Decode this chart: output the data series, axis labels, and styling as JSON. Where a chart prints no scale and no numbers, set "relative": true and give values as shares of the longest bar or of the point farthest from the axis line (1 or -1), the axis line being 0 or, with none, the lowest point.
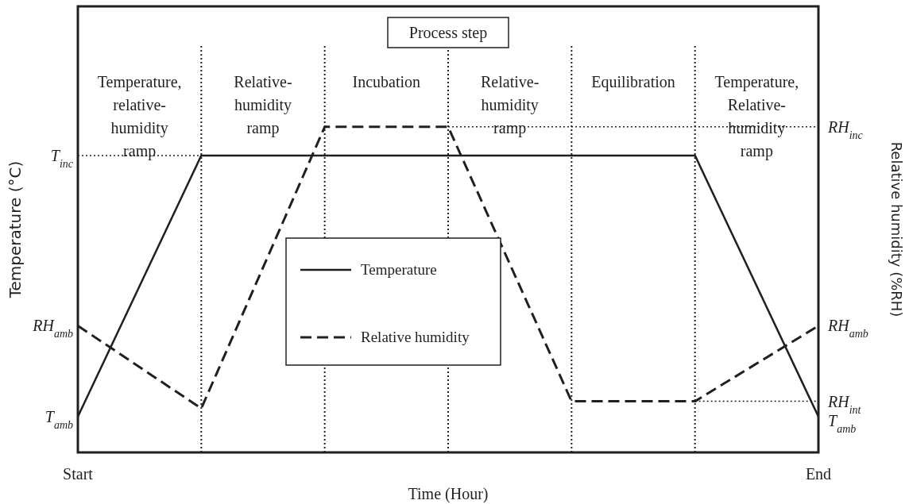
{
  "chart_data": {
    "type": "line",
    "relative": true,
    "xlabel": "Time (Hour)",
    "ylabel": "Temperature (°C)",
    "y2label": "Relative humidity (%RH)",
    "categories": [
      "Start",
      null,
      null,
      null,
      null,
      null,
      "End"
    ],
    "series": [
      {
        "name": "Temperature",
        "color": "#231f20",
        "line_style": "solid",
        "values": [
          0.11,
          0.912,
          0.912,
          0.912,
          0.912,
          0.912,
          0.11
        ]
      },
      {
        "name": "Relative humidity",
        "color": "#231f20",
        "line_style": "dashed",
        "values": [
          0.389,
          0.135,
          1,
          1,
          0.157,
          0.157,
          0.389
        ]
      },
      {
        "color": "#231f20",
        "line_style": "dotted",
        "values": [
          0.912,
          0.912,
          null,
          null,
          null,
          null,
          null
        ]
      },
      {
        "color": "#231f20",
        "line_style": "dotted",
        "values": [
          null,
          null,
          null,
          1,
          1,
          1,
          1
        ]
      },
      {
        "color": "#231f20",
        "line_style": "dotted",
        "values": [
          null,
          null,
          null,
          null,
          null,
          0.157,
          0.157
        ]
      }
    ],
    "annotations": [
      "Process step",
      "Temperature,\nrelative-\nhumidity\nramp",
      "Relative-\nhumidity\nramp",
      "Incubation",
      "Relative-\nhumidity\nramp",
      "Equilibration",
      "Temperature,\nRelative-\nhumidity\nramp",
      {
        "text": "T$_{inc}$",
        "x": "Start",
        "y": 0.912
      },
      {
        "text": "RH$_{amb}$",
        "x": "Start",
        "y": 0.389
      },
      {
        "text": "T$_{amb}$",
        "x": "Start",
        "y": 0.11
      },
      {
        "text": "RH$_{inc}$",
        "x": "End",
        "y": 1
      },
      {
        "text": "RH$_{amb}$",
        "x": "End",
        "y": 0.389
      },
      {
        "text": "RH$_{int}$",
        "x": "End",
        "y": 0.157
      },
      {
        "text": "T$_{amb}$",
        "x": "End",
        "y": 0.11
      }
    ],
    "legend": "center",
    "grid": false,
    "marker": "none"
  }
}
